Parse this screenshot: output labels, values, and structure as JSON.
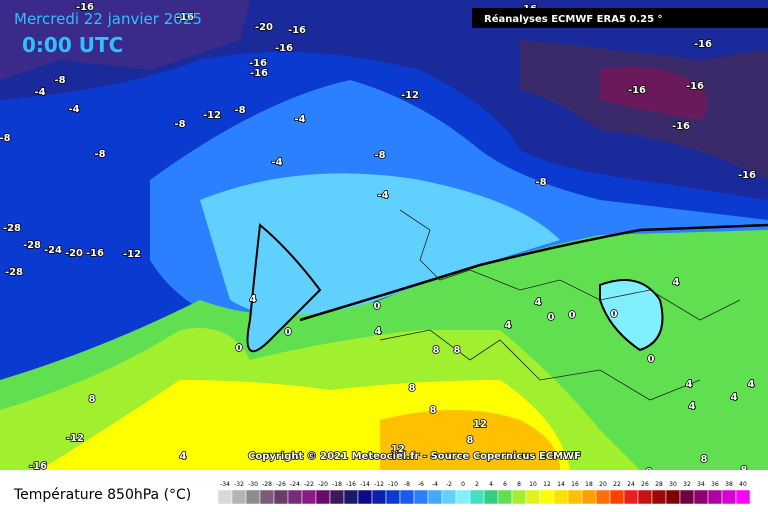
{
  "header": {
    "date": "Mercredi 22 janvier 2025",
    "time": "0:00 UTC",
    "source": "Réanalyses ECMWF ERA5 0.25 °"
  },
  "copyright": "Copyright © 2021 Meteociel.fr - Source Copernicus ECMWF",
  "legend": {
    "title": "Température 850hPa (°C)",
    "ticks": [
      -34,
      -32,
      -30,
      -28,
      -26,
      -24,
      -22,
      -20,
      -18,
      -16,
      -14,
      -12,
      -10,
      -8,
      -6,
      -4,
      -2,
      0,
      2,
      4,
      6,
      8,
      10,
      12,
      14,
      16,
      18,
      20,
      22,
      24,
      26,
      28,
      30,
      32,
      34,
      36,
      38,
      40
    ],
    "colors": [
      "#d8d8d8",
      "#b4b4b4",
      "#8c8c8c",
      "#7a5c7a",
      "#6a3c6a",
      "#7a2a7a",
      "#8a1a8a",
      "#6a0a6a",
      "#3a1a5a",
      "#1a1a6a",
      "#0a0a8a",
      "#0a20b0",
      "#0a3ad0",
      "#1a5af0",
      "#2a80ff",
      "#40aaff",
      "#60d0ff",
      "#80f0ff",
      "#40e0c0",
      "#30d080",
      "#60e050",
      "#a0f030",
      "#e0f020",
      "#ffff00",
      "#ffe000",
      "#ffc000",
      "#ffa000",
      "#ff7000",
      "#ff4000",
      "#e82020",
      "#c81010",
      "#a00808",
      "#800000",
      "#700040",
      "#900070",
      "#b000a0",
      "#d800d0",
      "#ff00ff"
    ]
  },
  "map": {
    "labels": [
      "-16",
      "-16",
      "-20",
      "-16",
      "-16",
      "-16",
      "-16",
      "-16",
      "-16",
      "-16",
      "-16",
      "-16",
      "-16",
      "-8",
      "-4",
      "-4",
      "-8",
      "-8",
      "-8",
      "-12",
      "-8",
      "-4",
      "-4",
      "-8",
      "-12",
      "-4",
      "-8",
      "-28",
      "-28",
      "-24",
      "-20",
      "-16",
      "-12",
      "-28",
      "4",
      "0",
      "0",
      "4",
      "0",
      "8",
      "8",
      "8",
      "8",
      "8",
      "-12",
      "-16",
      "4",
      "12",
      "8",
      "12",
      "4",
      "4",
      "0",
      "0",
      "0",
      "0",
      "4",
      "4",
      "4",
      "4",
      "4",
      "8",
      "8",
      "8"
    ]
  }
}
